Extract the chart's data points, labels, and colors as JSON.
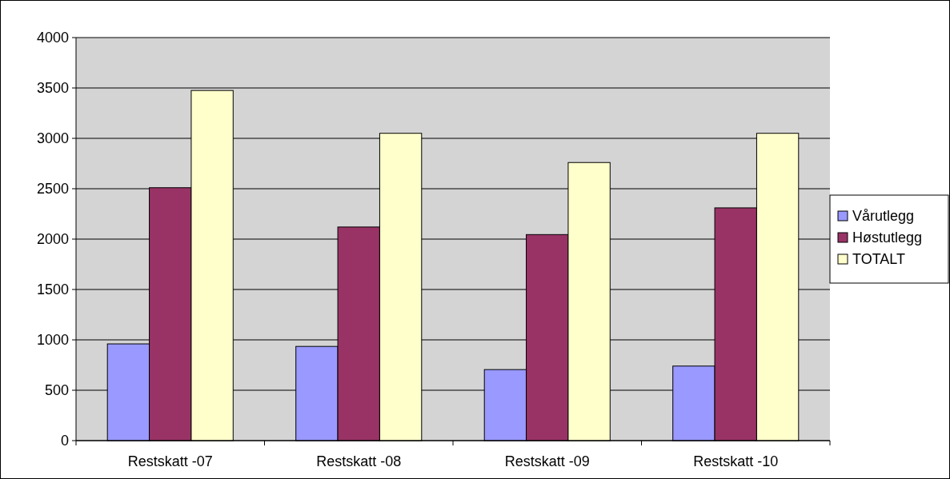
{
  "chart_data": {
    "type": "bar",
    "categories": [
      "Restskatt -07",
      "Restskatt -08",
      "Restskatt -09",
      "Restskatt -10"
    ],
    "series": [
      {
        "name": "Vårutlegg",
        "color": "#9999ff",
        "values": [
          960,
          935,
          705,
          740
        ]
      },
      {
        "name": "Høstutlegg",
        "color": "#993366",
        "values": [
          2510,
          2120,
          2045,
          2310
        ]
      },
      {
        "name": "TOTALT",
        "color": "#ffffcc",
        "values": [
          3475,
          3050,
          2760,
          3050
        ]
      }
    ],
    "ylim": [
      0,
      4000
    ],
    "yticks": [
      0,
      500,
      1000,
      1500,
      2000,
      2500,
      3000,
      3500,
      4000
    ],
    "grid": "y",
    "legend": "right"
  }
}
